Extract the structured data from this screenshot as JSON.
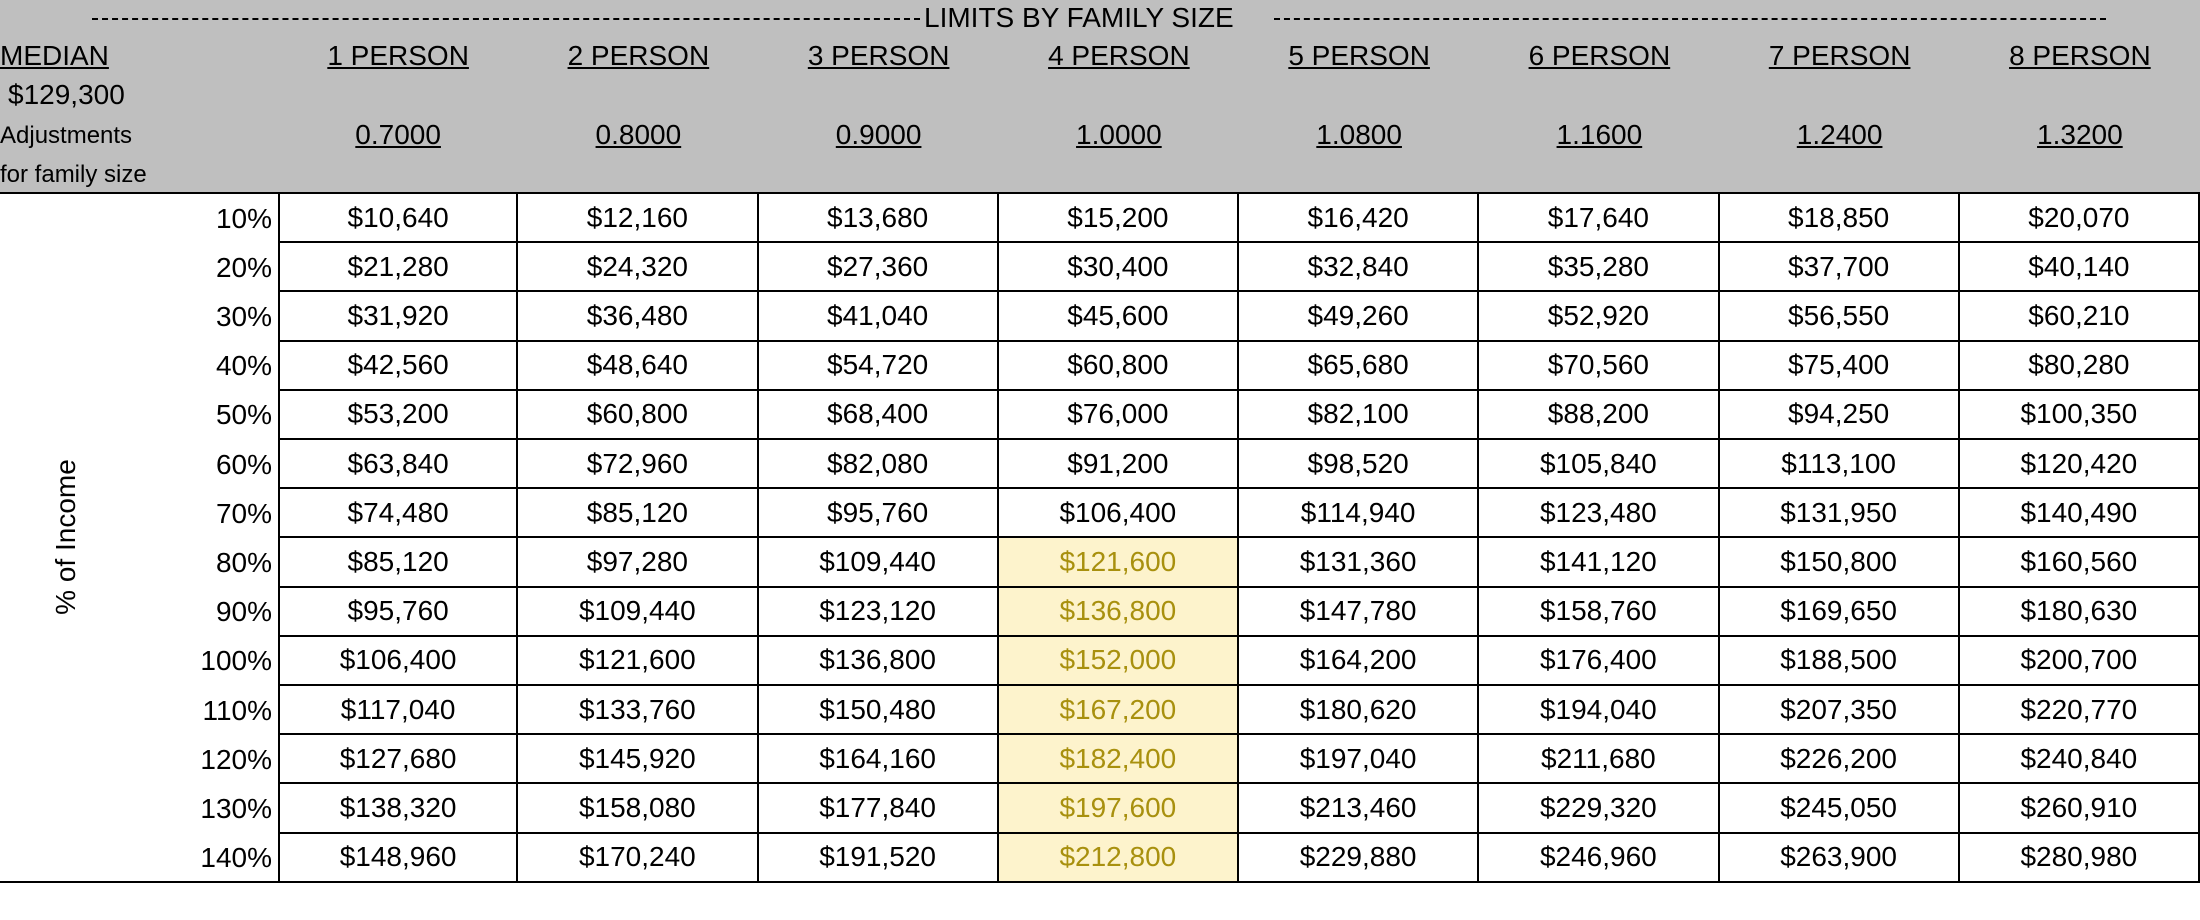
{
  "header": {
    "title": "LIMITS BY FAMILY SIZE",
    "median_label": "MEDIAN",
    "median_value": "$129,300",
    "adjust_label": [
      "Adjustments",
      "for family size"
    ],
    "columns": [
      "1 PERSON",
      "2 PERSON",
      "3 PERSON",
      "4 PERSON",
      "5 PERSON",
      "6 PERSON",
      "7 PERSON",
      "8 PERSON"
    ],
    "adjustments": [
      "0.7000",
      "0.8000",
      "0.9000",
      "1.0000",
      "1.0800",
      "1.1600",
      "1.2400",
      "1.3200"
    ]
  },
  "table": {
    "side_label": "% of Income",
    "highlight": {
      "column": 3,
      "from_row": 7,
      "to_row": 13,
      "fill": "#fdf3cc",
      "text_color": "#a8900e"
    },
    "rows": [
      {
        "pct": "10%",
        "values": [
          "$10,640",
          "$12,160",
          "$13,680",
          "$15,200",
          "$16,420",
          "$17,640",
          "$18,850",
          "$20,070"
        ]
      },
      {
        "pct": "20%",
        "values": [
          "$21,280",
          "$24,320",
          "$27,360",
          "$30,400",
          "$32,840",
          "$35,280",
          "$37,700",
          "$40,140"
        ]
      },
      {
        "pct": "30%",
        "values": [
          "$31,920",
          "$36,480",
          "$41,040",
          "$45,600",
          "$49,260",
          "$52,920",
          "$56,550",
          "$60,210"
        ]
      },
      {
        "pct": "40%",
        "values": [
          "$42,560",
          "$48,640",
          "$54,720",
          "$60,800",
          "$65,680",
          "$70,560",
          "$75,400",
          "$80,280"
        ]
      },
      {
        "pct": "50%",
        "values": [
          "$53,200",
          "$60,800",
          "$68,400",
          "$76,000",
          "$82,100",
          "$88,200",
          "$94,250",
          "$100,350"
        ]
      },
      {
        "pct": "60%",
        "values": [
          "$63,840",
          "$72,960",
          "$82,080",
          "$91,200",
          "$98,520",
          "$105,840",
          "$113,100",
          "$120,420"
        ]
      },
      {
        "pct": "70%",
        "values": [
          "$74,480",
          "$85,120",
          "$95,760",
          "$106,400",
          "$114,940",
          "$123,480",
          "$131,950",
          "$140,490"
        ]
      },
      {
        "pct": "80%",
        "values": [
          "$85,120",
          "$97,280",
          "$109,440",
          "$121,600",
          "$131,360",
          "$141,120",
          "$150,800",
          "$160,560"
        ]
      },
      {
        "pct": "90%",
        "values": [
          "$95,760",
          "$109,440",
          "$123,120",
          "$136,800",
          "$147,780",
          "$158,760",
          "$169,650",
          "$180,630"
        ]
      },
      {
        "pct": "100%",
        "values": [
          "$106,400",
          "$121,600",
          "$136,800",
          "$152,000",
          "$164,200",
          "$176,400",
          "$188,500",
          "$200,700"
        ]
      },
      {
        "pct": "110%",
        "values": [
          "$117,040",
          "$133,760",
          "$150,480",
          "$167,200",
          "$180,620",
          "$194,040",
          "$207,350",
          "$220,770"
        ]
      },
      {
        "pct": "120%",
        "values": [
          "$127,680",
          "$145,920",
          "$164,160",
          "$182,400",
          "$197,040",
          "$211,680",
          "$226,200",
          "$240,840"
        ]
      },
      {
        "pct": "130%",
        "values": [
          "$138,320",
          "$158,080",
          "$177,840",
          "$197,600",
          "$213,460",
          "$229,320",
          "$245,050",
          "$260,910"
        ]
      },
      {
        "pct": "140%",
        "values": [
          "$148,960",
          "$170,240",
          "$191,520",
          "$212,800",
          "$229,880",
          "$246,960",
          "$263,900",
          "$280,980"
        ]
      }
    ]
  }
}
